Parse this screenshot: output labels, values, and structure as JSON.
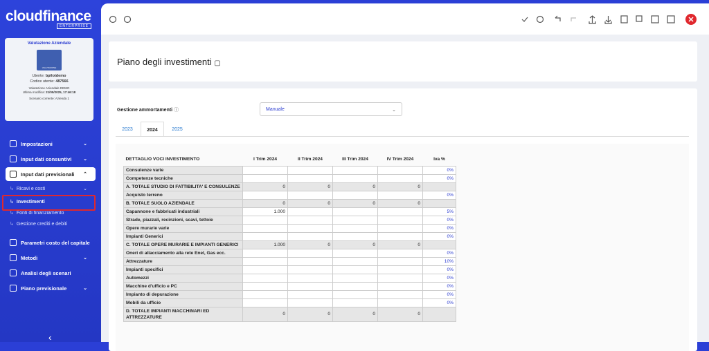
{
  "sidebar": {
    "logo": "cloudfinance",
    "edition": "ENTERPRISE",
    "card": {
      "title": "Valutazione Aziendale",
      "icon_text": "VALUTAZIONE AZIENDALE",
      "user_label": "Utente:",
      "user": "bpilotdemo",
      "code_label": "Codice utente:",
      "code": "487566",
      "company": "Valutazione Aziendale DEMO",
      "modified_label": "Ultima modifica:",
      "modified": "21/05/2025, 17:46:18",
      "scenario": "Scenario corrente: Azienda 1"
    },
    "menu": [
      {
        "label": "Impostazioni",
        "chevron": true
      },
      {
        "label": "Input dati consuntivi",
        "chevron": true
      },
      {
        "label": "Input dati previsionali",
        "chevron": true,
        "open": true,
        "children": [
          {
            "label": "Ricavi e costi",
            "chevron": true
          },
          {
            "label": "Investimenti",
            "active": true
          },
          {
            "label": "Fonti di finanziamento"
          },
          {
            "label": "Gestione crediti e debiti"
          }
        ]
      },
      {
        "label": "Parametri costo del capitale"
      },
      {
        "label": "Metodi",
        "chevron": true
      },
      {
        "label": "Analisi degli scenari"
      },
      {
        "label": "Piano previsionale",
        "chevron": true
      }
    ]
  },
  "header": {
    "title": "Piano degli investimenti"
  },
  "form": {
    "label": "Gestione ammortamenti",
    "select": "Manuale",
    "tabs": [
      "2023",
      "2024",
      "2025"
    ],
    "active_tab": 1
  },
  "table": {
    "columns": [
      "DETTAGLIO VOCI INVESTIMENTO",
      "I Trim 2024",
      "II Trim 2024",
      "III Trim 2024",
      "IV Trim 2024",
      "Iva %"
    ],
    "rows": [
      {
        "label": "Consulenze varie",
        "cells": [
          null,
          null,
          null,
          null
        ],
        "iva": "0%"
      },
      {
        "label": "Competenze tecniche",
        "cells": [
          null,
          null,
          null,
          null
        ],
        "iva": "0%"
      },
      {
        "label": "A. TOTALE STUDIO DI FATTIBILITA' E CONSULENZE",
        "cells": [
          "0",
          "0",
          "0",
          "0"
        ],
        "total": true
      },
      {
        "label": "Acquisto terreno",
        "cells": [
          null,
          null,
          null,
          null
        ],
        "iva": "0%"
      },
      {
        "label": "B. TOTALE SUOLO AZIENDALE",
        "cells": [
          "0",
          "0",
          "0",
          "0"
        ],
        "total": true
      },
      {
        "label": "Capannone e fabbricati industriali",
        "cells": [
          "1.000",
          null,
          null,
          null
        ],
        "iva": "5%"
      },
      {
        "label": "Strade, piazzali, recinzioni, scavi, tettoie",
        "cells": [
          null,
          null,
          null,
          null
        ],
        "iva": "0%"
      },
      {
        "label": "Opere murarie varie",
        "cells": [
          null,
          null,
          null,
          null
        ],
        "iva": "0%"
      },
      {
        "label": "Impianti Generici",
        "cells": [
          null,
          null,
          null,
          null
        ],
        "iva": "0%"
      },
      {
        "label": "C. TOTALE OPERE MURARIE E IMPIANTI GENERICI",
        "cells": [
          "1.000",
          "0",
          "0",
          "0"
        ],
        "total": true
      },
      {
        "label": "Oneri di allacciamento alla rete Enel, Gas ecc.",
        "cells": [
          null,
          null,
          null,
          null
        ],
        "iva": "0%"
      },
      {
        "label": "Attrezzature",
        "cells": [
          null,
          null,
          null,
          null
        ],
        "iva": "10%"
      },
      {
        "label": "Impianti specifici",
        "cells": [
          null,
          null,
          null,
          null
        ],
        "iva": "0%"
      },
      {
        "label": "Automezzi",
        "cells": [
          null,
          null,
          null,
          null
        ],
        "iva": "0%"
      },
      {
        "label": "Macchine d'ufficio e PC",
        "cells": [
          null,
          null,
          null,
          null
        ],
        "iva": "0%"
      },
      {
        "label": "Impianto di depurazione",
        "cells": [
          null,
          null,
          null,
          null
        ],
        "iva": "0%"
      },
      {
        "label": "Mobili da ufficio",
        "cells": [
          null,
          null,
          null,
          null
        ],
        "iva": "0%"
      },
      {
        "label": "D. TOTALE IMPIANTI MACCHINARI ED ATTREZZATURE",
        "cells": [
          "0",
          "0",
          "0",
          "0"
        ],
        "total": true
      }
    ]
  }
}
